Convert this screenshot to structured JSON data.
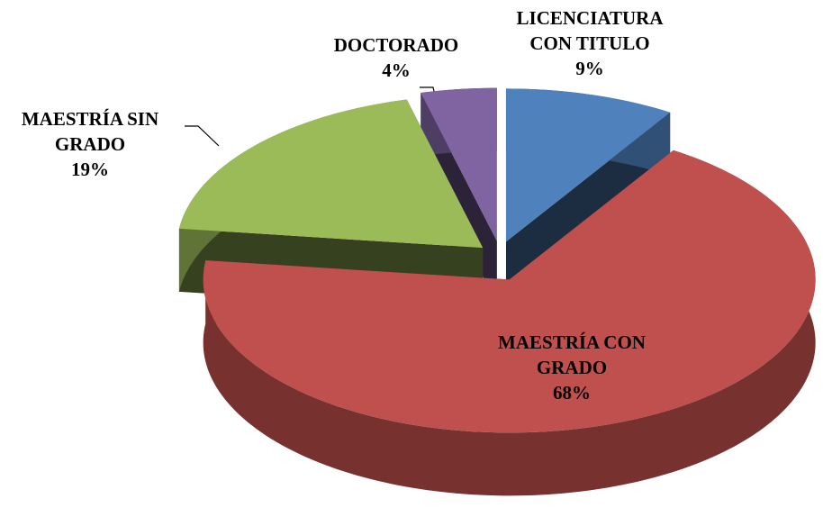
{
  "chart_data": {
    "type": "pie",
    "categories": [
      "LICENCIATURA CON TITULO",
      "MAESTRÍA CON GRADO",
      "MAESTRÍA SIN GRADO",
      "DOCTORADO"
    ],
    "values": [
      9,
      68,
      19,
      4
    ],
    "value_labels": [
      "9%",
      "68%",
      "19%",
      "4%"
    ],
    "colors": [
      "#4f81bd",
      "#c0504d",
      "#9bbb59",
      "#8064a2"
    ]
  }
}
